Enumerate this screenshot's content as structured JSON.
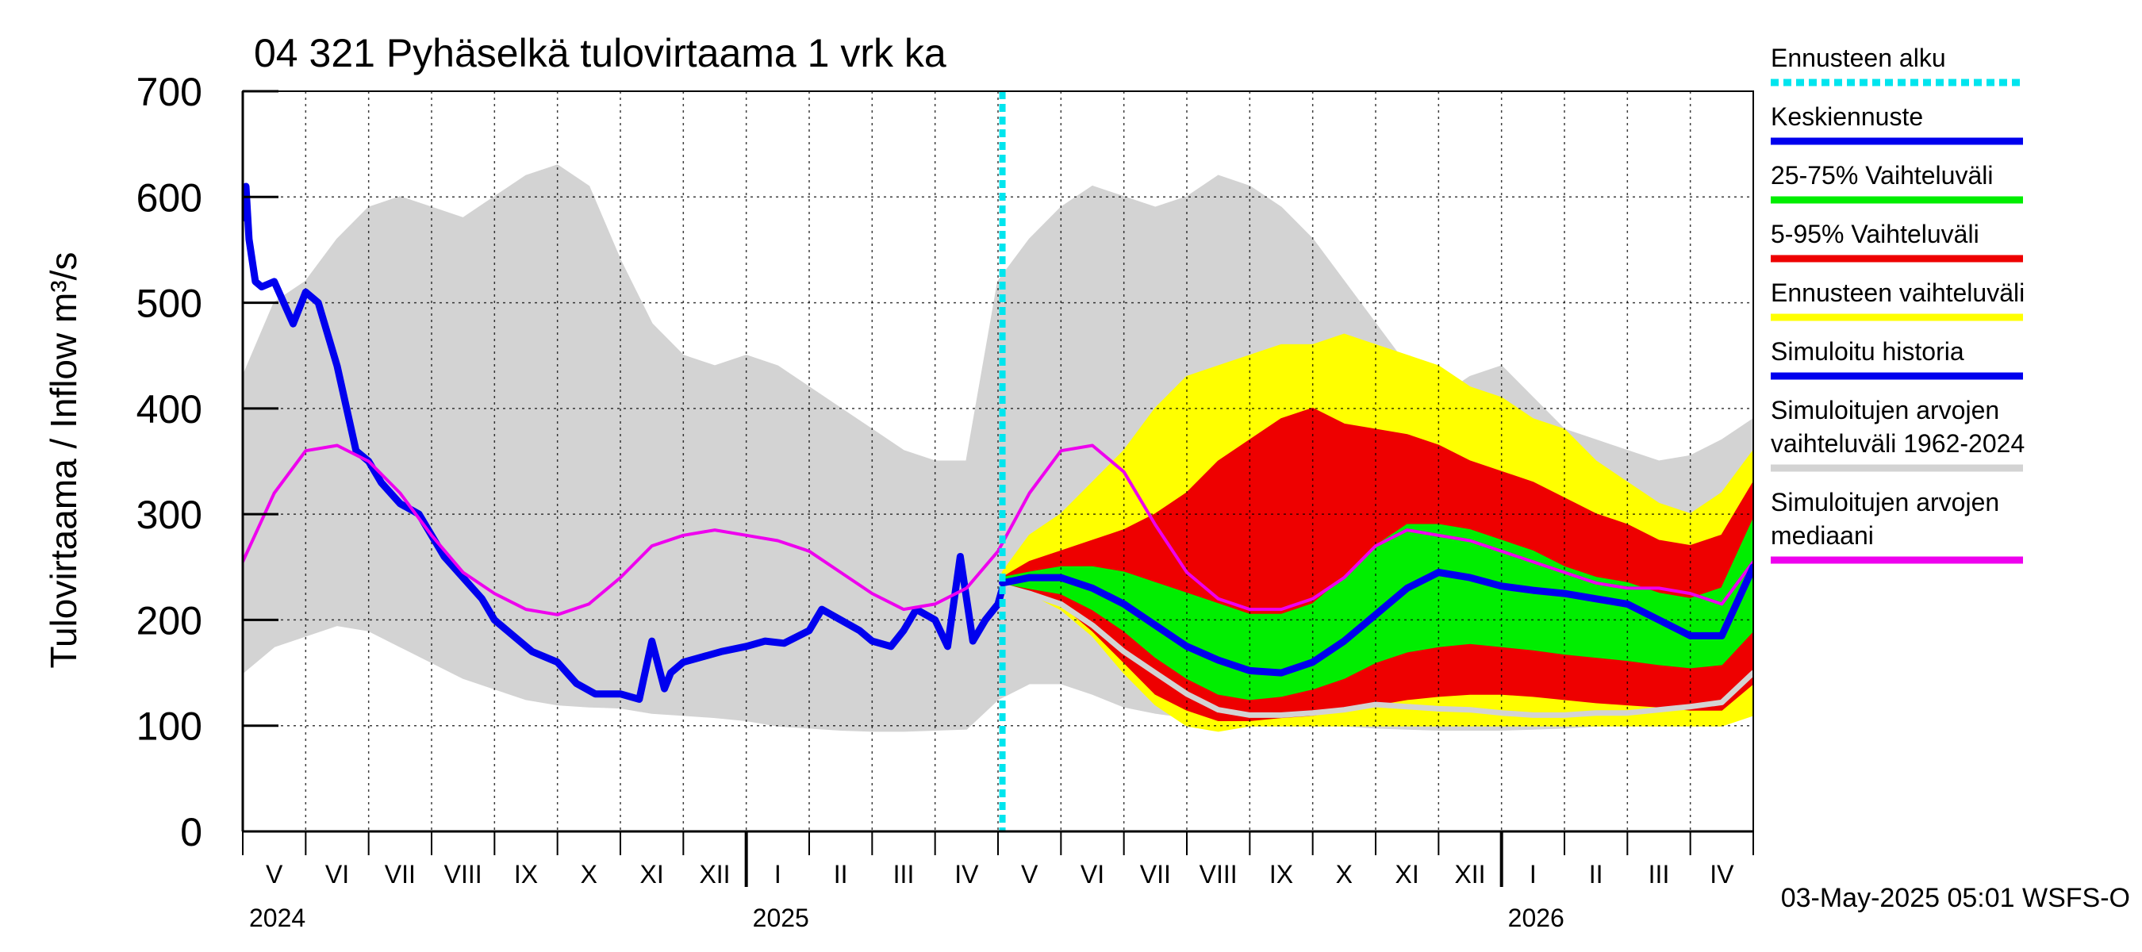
{
  "chart_data": {
    "type": "line",
    "title": "04 321 Pyhäselkä tulovirtaama 1 vrk ka",
    "ylabel": "Tulovirtaama / Inflow    m³/s",
    "ylim": [
      0,
      700
    ],
    "yticks": [
      0,
      100,
      200,
      300,
      400,
      500,
      600,
      700
    ],
    "x_month_range": [
      0,
      24
    ],
    "month_labels": [
      "V",
      "VI",
      "VII",
      "VIII",
      "IX",
      "X",
      "XI",
      "XII",
      "I",
      "II",
      "III",
      "IV",
      "V",
      "VI",
      "VII",
      "VIII",
      "IX",
      "X",
      "XI",
      "XII",
      "I",
      "II",
      "III",
      "IV"
    ],
    "year_labels": [
      {
        "label": "2024",
        "month": 0
      },
      {
        "label": "2025",
        "month": 8
      },
      {
        "label": "2026",
        "month": 20
      }
    ],
    "forecast_start_month": 12.07,
    "footer": "03-May-2025 05:01 WSFS-O",
    "legend": [
      {
        "label": "Ennusteen alku",
        "color": "#00e5ee",
        "style": "dotted"
      },
      {
        "label": "Keskiennuste",
        "color": "#0000ee",
        "style": "solid"
      },
      {
        "label": "25-75% Vaihteluväli",
        "color": "#00ee00",
        "style": "solid"
      },
      {
        "label": "5-95% Vaihteluväli",
        "color": "#ee0000",
        "style": "solid"
      },
      {
        "label": "Ennusteen vaihteluväli",
        "color": "#ffff00",
        "style": "solid"
      },
      {
        "label": "Simuloitu historia",
        "color": "#0000ee",
        "style": "solid"
      },
      {
        "label": "Simuloitujen arvojen vaihteluväli 1962-2024",
        "lines": [
          "Simuloitujen arvojen",
          "vaihteluväli 1962-2024"
        ],
        "color": "#d3d3d3",
        "style": "solid"
      },
      {
        "label": "Simuloitujen arvojen mediaani",
        "lines": [
          "Simuloitujen arvojen",
          "mediaani"
        ],
        "color": "#ee00ee",
        "style": "solid"
      }
    ],
    "series": [
      {
        "name": "Simuloitujen arvojen vaihteluväli 1962-2024",
        "kind": "band",
        "color": "#d3d3d3",
        "x": [
          0,
          0.5,
          1,
          1.5,
          2,
          2.5,
          3,
          3.5,
          4,
          4.5,
          5,
          5.5,
          6,
          6.5,
          7,
          7.5,
          8,
          8.5,
          9,
          9.5,
          10,
          10.5,
          11,
          11.5,
          12,
          12.5,
          13,
          13.5,
          14,
          14.5,
          15,
          15.5,
          16,
          16.5,
          17,
          17.5,
          18,
          18.5,
          19,
          19.5,
          20,
          20.5,
          21,
          21.5,
          22,
          22.5,
          23,
          23.5,
          24
        ],
        "low": [
          150,
          175,
          185,
          195,
          190,
          175,
          160,
          145,
          135,
          125,
          120,
          118,
          117,
          112,
          110,
          108,
          105,
          100,
          98,
          96,
          95,
          95,
          96,
          97,
          125,
          140,
          140,
          130,
          118,
          112,
          108,
          104,
          102,
          100,
          100,
          100,
          98,
          97,
          96,
          96,
          96,
          97,
          98,
          100,
          102,
          104,
          106,
          110,
          145
        ],
        "high": [
          430,
          500,
          520,
          560,
          590,
          600,
          590,
          580,
          600,
          620,
          630,
          610,
          540,
          480,
          450,
          440,
          450,
          440,
          420,
          400,
          380,
          360,
          350,
          350,
          520,
          560,
          590,
          610,
          600,
          590,
          600,
          620,
          610,
          590,
          560,
          520,
          480,
          440,
          410,
          430,
          440,
          410,
          380,
          370,
          360,
          350,
          355,
          370,
          390
        ]
      },
      {
        "name": "Ennusteen vaihteluväli",
        "kind": "band",
        "color": "#ffff00",
        "x": [
          12.07,
          12.5,
          13,
          13.5,
          14,
          14.5,
          15,
          15.5,
          16,
          16.5,
          17,
          17.5,
          18,
          18.5,
          19,
          19.5,
          20,
          20.5,
          21,
          21.5,
          22,
          22.5,
          23,
          23.5,
          24
        ],
        "low": [
          240,
          225,
          210,
          185,
          150,
          120,
          100,
          95,
          100,
          100,
          100,
          100,
          100,
          100,
          100,
          100,
          100,
          100,
          100,
          100,
          100,
          100,
          100,
          100,
          110
        ],
        "high": [
          245,
          280,
          300,
          330,
          360,
          400,
          430,
          440,
          450,
          460,
          460,
          470,
          460,
          450,
          440,
          420,
          410,
          390,
          380,
          350,
          330,
          310,
          300,
          320,
          360
        ]
      },
      {
        "name": "5-95% Vaihteluväli",
        "kind": "band",
        "color": "#ee0000",
        "x": [
          12.07,
          12.5,
          13,
          13.5,
          14,
          14.5,
          15,
          15.5,
          16,
          16.5,
          17,
          17.5,
          18,
          18.5,
          19,
          19.5,
          20,
          20.5,
          21,
          21.5,
          22,
          22.5,
          23,
          23.5,
          24
        ],
        "low": [
          235,
          225,
          215,
          190,
          160,
          130,
          115,
          105,
          105,
          108,
          110,
          115,
          120,
          125,
          128,
          130,
          130,
          128,
          125,
          122,
          120,
          118,
          115,
          115,
          140
        ],
        "high": [
          240,
          255,
          265,
          275,
          285,
          300,
          320,
          350,
          370,
          390,
          400,
          385,
          380,
          375,
          365,
          350,
          340,
          330,
          315,
          300,
          290,
          275,
          270,
          280,
          330
        ]
      },
      {
        "name": "25-75% Vaihteluväli",
        "kind": "band",
        "color": "#00ee00",
        "x": [
          12.07,
          12.5,
          13,
          13.5,
          14,
          14.5,
          15,
          15.5,
          16,
          16.5,
          17,
          17.5,
          18,
          18.5,
          19,
          19.5,
          20,
          20.5,
          21,
          21.5,
          22,
          22.5,
          23,
          23.5,
          24
        ],
        "low": [
          235,
          230,
          225,
          210,
          190,
          165,
          145,
          130,
          125,
          128,
          135,
          145,
          160,
          170,
          175,
          178,
          175,
          172,
          168,
          165,
          162,
          158,
          155,
          158,
          190
        ],
        "high": [
          240,
          245,
          250,
          250,
          245,
          235,
          225,
          215,
          205,
          205,
          215,
          240,
          270,
          290,
          290,
          285,
          275,
          265,
          250,
          240,
          235,
          225,
          220,
          230,
          295
        ]
      },
      {
        "name": "Simuloitu historia",
        "kind": "line",
        "color": "#0000ee",
        "width": 9,
        "x": [
          0,
          0.05,
          0.1,
          0.2,
          0.3,
          0.5,
          0.8,
          1,
          1.2,
          1.5,
          1.8,
          2,
          2.2,
          2.5,
          2.8,
          3,
          3.2,
          3.5,
          3.8,
          4,
          4.3,
          4.6,
          5,
          5.3,
          5.6,
          6,
          6.3,
          6.5,
          6.7,
          6.8,
          7,
          7.3,
          7.6,
          8,
          8.3,
          8.6,
          9,
          9.2,
          9.5,
          9.8,
          10,
          10.3,
          10.5,
          10.7,
          11,
          11.2,
          11.4,
          11.6,
          11.8,
          12,
          12.07
        ],
        "y": [
          580,
          610,
          560,
          520,
          515,
          520,
          480,
          510,
          500,
          440,
          360,
          350,
          330,
          310,
          300,
          280,
          260,
          240,
          220,
          200,
          185,
          170,
          160,
          140,
          130,
          130,
          125,
          180,
          135,
          150,
          160,
          165,
          170,
          175,
          180,
          178,
          190,
          210,
          200,
          190,
          180,
          175,
          190,
          210,
          200,
          175,
          260,
          180,
          200,
          215,
          230
        ]
      },
      {
        "name": "Simuloitujen arvojen mediaani",
        "kind": "line",
        "color": "#ee00ee",
        "width": 4,
        "x": [
          0,
          0.5,
          1,
          1.5,
          2,
          2.5,
          3,
          3.5,
          4,
          4.5,
          5,
          5.5,
          6,
          6.5,
          7,
          7.5,
          8,
          8.5,
          9,
          9.5,
          10,
          10.5,
          11,
          11.5,
          12,
          12.5,
          13,
          13.5,
          14,
          14.5,
          15,
          15.5,
          16,
          16.5,
          17,
          17.5,
          18,
          18.5,
          19,
          19.5,
          20,
          20.5,
          21,
          21.5,
          22,
          22.5,
          23,
          23.5,
          24
        ],
        "y": [
          255,
          320,
          360,
          365,
          350,
          320,
          280,
          245,
          225,
          210,
          205,
          215,
          240,
          270,
          280,
          285,
          280,
          275,
          265,
          245,
          225,
          210,
          215,
          230,
          265,
          320,
          360,
          365,
          340,
          290,
          245,
          220,
          210,
          210,
          220,
          240,
          270,
          285,
          280,
          275,
          265,
          255,
          245,
          235,
          230,
          230,
          225,
          215,
          255
        ]
      },
      {
        "name": "Simuloitu historia (vertailuvuosi)",
        "kind": "line",
        "color": "#d3d3d3",
        "width": 7,
        "x": [
          12.07,
          12.5,
          13,
          13.5,
          14,
          14.5,
          15,
          15.5,
          16,
          16.5,
          17,
          17.5,
          18,
          18.5,
          19,
          19.5,
          20,
          20.5,
          21,
          21.5,
          22,
          22.5,
          23,
          23.5,
          24
        ],
        "y": [
          232,
          225,
          215,
          195,
          170,
          150,
          130,
          115,
          110,
          110,
          112,
          115,
          120,
          118,
          116,
          115,
          112,
          110,
          110,
          112,
          112,
          115,
          118,
          122,
          150
        ]
      },
      {
        "name": "Keskiennuste",
        "kind": "line",
        "color": "#0000ee",
        "width": 9,
        "x": [
          12.07,
          12.5,
          13,
          13.5,
          14,
          14.5,
          15,
          15.5,
          16,
          16.5,
          17,
          17.5,
          18,
          18.5,
          19,
          19.5,
          20,
          20.5,
          21,
          21.5,
          22,
          22.5,
          23,
          23.5,
          24
        ],
        "y": [
          235,
          240,
          240,
          230,
          215,
          195,
          175,
          162,
          152,
          150,
          160,
          180,
          205,
          230,
          245,
          240,
          232,
          228,
          225,
          220,
          215,
          200,
          185,
          185,
          250
        ]
      }
    ]
  }
}
